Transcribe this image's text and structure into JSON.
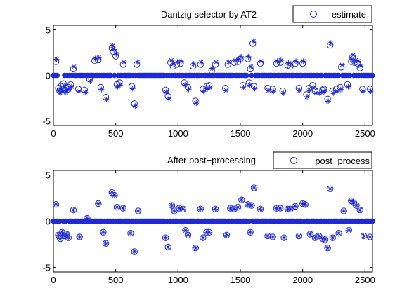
{
  "colors": {
    "marker": "#1f2ad6",
    "axis": "#000000",
    "background": "#ffffff"
  },
  "chart_data": [
    {
      "type": "scatter",
      "title": "Dantzig selector by AT2",
      "xlabel": "",
      "ylabel": "",
      "xlim": [
        0,
        2560
      ],
      "ylim": [
        -5.5,
        5.5
      ],
      "xticks": [
        "0",
        "500",
        "1000",
        "1500",
        "2000",
        "2500"
      ],
      "yticks": [
        "5",
        "0",
        "-5"
      ],
      "legend": {
        "position": "top-right",
        "entries": [
          "estimate"
        ]
      },
      "grid": false,
      "series": [
        {
          "name": "estimate",
          "marker": "circle",
          "points": [
            [
              20,
              1.5
            ],
            [
              40,
              -1.4
            ],
            [
              50,
              -1.7
            ],
            [
              60,
              -1.2
            ],
            [
              70,
              -1.5
            ],
            [
              80,
              -0.9
            ],
            [
              95,
              -1.6
            ],
            [
              100,
              -1.4
            ],
            [
              120,
              -1.3
            ],
            [
              140,
              -1.0
            ],
            [
              160,
              0.7
            ],
            [
              200,
              -1.5
            ],
            [
              250,
              -1.6
            ],
            [
              290,
              -0.4
            ],
            [
              330,
              1.6
            ],
            [
              360,
              1.7
            ],
            [
              380,
              -1.3
            ],
            [
              420,
              -2.4
            ],
            [
              470,
              3.0
            ],
            [
              480,
              2.6
            ],
            [
              500,
              2.1
            ],
            [
              510,
              -1.0
            ],
            [
              530,
              -0.8
            ],
            [
              560,
              1.2
            ],
            [
              630,
              -1.2
            ],
            [
              650,
              -3.1
            ],
            [
              670,
              1.2
            ],
            [
              900,
              -1.6
            ],
            [
              920,
              -2.3
            ],
            [
              940,
              1.4
            ],
            [
              960,
              1.0
            ],
            [
              990,
              1.2
            ],
            [
              1020,
              1.3
            ],
            [
              1050,
              -0.8
            ],
            [
              1080,
              -1.3
            ],
            [
              1120,
              1.0
            ],
            [
              1140,
              -2.8
            ],
            [
              1180,
              1.2
            ],
            [
              1200,
              -1.5
            ],
            [
              1230,
              -1.2
            ],
            [
              1250,
              -1.1
            ],
            [
              1270,
              0.5
            ],
            [
              1300,
              1.2
            ],
            [
              1380,
              -1.4
            ],
            [
              1400,
              1.2
            ],
            [
              1450,
              1.4
            ],
            [
              1480,
              1.5
            ],
            [
              1500,
              1.8
            ],
            [
              1520,
              -1.1
            ],
            [
              1560,
              1.8
            ],
            [
              1570,
              -0.8
            ],
            [
              1580,
              0.7
            ],
            [
              1600,
              3.5
            ],
            [
              1610,
              -1.2
            ],
            [
              1660,
              1.3
            ],
            [
              1720,
              -1.4
            ],
            [
              1760,
              -1.5
            ],
            [
              1790,
              1.3
            ],
            [
              1820,
              1.4
            ],
            [
              1840,
              -1.7
            ],
            [
              1880,
              1.1
            ],
            [
              1900,
              1.0
            ],
            [
              1940,
              1.3
            ],
            [
              1970,
              -1.4
            ],
            [
              2000,
              1.3
            ],
            [
              2030,
              -2.1
            ],
            [
              2050,
              -1.4
            ],
            [
              2080,
              -1.1
            ],
            [
              2100,
              -1.7
            ],
            [
              2130,
              -1.7
            ],
            [
              2160,
              -1.6
            ],
            [
              2170,
              -1.5
            ],
            [
              2200,
              -2.6
            ],
            [
              2220,
              3.3
            ],
            [
              2240,
              -1.7
            ],
            [
              2270,
              -1.5
            ],
            [
              2300,
              -1.3
            ],
            [
              2310,
              0.9
            ],
            [
              2360,
              -1.0
            ],
            [
              2390,
              1.5
            ],
            [
              2400,
              2.0
            ],
            [
              2420,
              1.4
            ],
            [
              2440,
              1.3
            ],
            [
              2460,
              0.8
            ],
            [
              2480,
              -1.5
            ],
            [
              2540,
              -1.5
            ]
          ]
        }
      ]
    },
    {
      "type": "scatter",
      "title": "After post−processing",
      "xlabel": "",
      "ylabel": "",
      "xlim": [
        0,
        2560
      ],
      "ylim": [
        -5.5,
        5.5
      ],
      "xticks": [
        "0",
        "500",
        "1000",
        "1500",
        "2000",
        "2500"
      ],
      "yticks": [
        "5",
        "0",
        "-5"
      ],
      "legend": {
        "position": "top-right",
        "entries": [
          "post−process"
        ]
      },
      "grid": false,
      "series": [
        {
          "name": "post−process",
          "marker": "circle-star",
          "points": [
            [
              20,
              1.8
            ],
            [
              40,
              -1.5
            ],
            [
              55,
              -1.9
            ],
            [
              70,
              -1.2
            ],
            [
              90,
              -1.6
            ],
            [
              105,
              -1.4
            ],
            [
              120,
              -1.8
            ],
            [
              160,
              1.2
            ],
            [
              210,
              -1.7
            ],
            [
              270,
              0.3
            ],
            [
              360,
              1.9
            ],
            [
              400,
              -1.2
            ],
            [
              420,
              -2.4
            ],
            [
              470,
              3.1
            ],
            [
              490,
              2.8
            ],
            [
              510,
              1.5
            ],
            [
              560,
              1.4
            ],
            [
              620,
              -1.3
            ],
            [
              650,
              -3.3
            ],
            [
              680,
              1.1
            ],
            [
              900,
              -1.8
            ],
            [
              920,
              -2.8
            ],
            [
              950,
              1.7
            ],
            [
              970,
              1.1
            ],
            [
              1010,
              1.4
            ],
            [
              1040,
              1.3
            ],
            [
              1060,
              -1.0
            ],
            [
              1080,
              -1.5
            ],
            [
              1140,
              -2.9
            ],
            [
              1180,
              1.3
            ],
            [
              1200,
              -1.8
            ],
            [
              1230,
              -1.2
            ],
            [
              1250,
              -1.2
            ],
            [
              1300,
              1.3
            ],
            [
              1390,
              -1.5
            ],
            [
              1420,
              1.4
            ],
            [
              1450,
              1.3
            ],
            [
              1480,
              1.5
            ],
            [
              1510,
              2.3
            ],
            [
              1560,
              1.8
            ],
            [
              1580,
              -1.2
            ],
            [
              1590,
              1.7
            ],
            [
              1610,
              3.6
            ],
            [
              1660,
              1.3
            ],
            [
              1720,
              -1.6
            ],
            [
              1760,
              -1.7
            ],
            [
              1790,
              1.4
            ],
            [
              1820,
              1.4
            ],
            [
              1850,
              -1.8
            ],
            [
              1880,
              1.3
            ],
            [
              1900,
              1.3
            ],
            [
              1940,
              1.6
            ],
            [
              1970,
              -1.6
            ],
            [
              2000,
              1.9
            ],
            [
              2020,
              1.8
            ],
            [
              2060,
              -1.4
            ],
            [
              2100,
              -1.8
            ],
            [
              2130,
              -1.6
            ],
            [
              2160,
              -1.9
            ],
            [
              2180,
              -2.0
            ],
            [
              2200,
              -2.9
            ],
            [
              2220,
              3.5
            ],
            [
              2240,
              -1.8
            ],
            [
              2290,
              -1.3
            ],
            [
              2330,
              1.1
            ],
            [
              2370,
              -1.0
            ],
            [
              2390,
              2.2
            ],
            [
              2410,
              2.0
            ],
            [
              2430,
              1.7
            ],
            [
              2460,
              1.2
            ],
            [
              2490,
              -1.6
            ],
            [
              2540,
              -1.7
            ]
          ]
        }
      ]
    }
  ]
}
